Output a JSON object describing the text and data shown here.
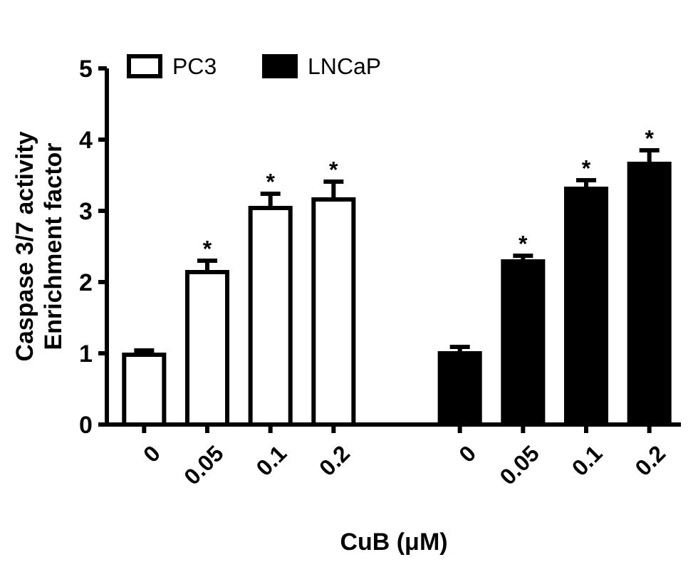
{
  "chart_data": {
    "type": "bar",
    "xlabel": "CuB (μM)",
    "ylabel": "Caspase 3/7 activity\nEnrichment factor",
    "categories": [
      "0",
      "0.05",
      "0.1",
      "0.2",
      null,
      "0",
      "0.05",
      "0.1",
      "0.2"
    ],
    "series": [
      {
        "name": "PC3",
        "color": "#ffffff",
        "values": [
          1.01,
          2.17,
          3.07,
          3.19,
          null,
          null,
          null,
          null,
          null
        ],
        "errors": [
          0.03,
          0.13,
          0.17,
          0.22,
          null,
          null,
          null,
          null,
          null
        ],
        "value_labels": [
          null,
          "*",
          "*",
          "*",
          null,
          null,
          null,
          null,
          null
        ]
      },
      {
        "name": "LNCaP",
        "color": "#000000",
        "values": [
          null,
          null,
          null,
          null,
          null,
          1.03,
          2.32,
          3.34,
          3.69
        ],
        "errors": [
          null,
          null,
          null,
          null,
          null,
          0.06,
          0.05,
          0.09,
          0.16
        ],
        "value_labels": [
          null,
          null,
          null,
          null,
          null,
          null,
          "*",
          "*",
          "*"
        ]
      }
    ],
    "ylim": [
      0,
      5
    ],
    "yticks": [
      0,
      1,
      2,
      3,
      4,
      5
    ],
    "legend": "top left",
    "grid": false
  }
}
